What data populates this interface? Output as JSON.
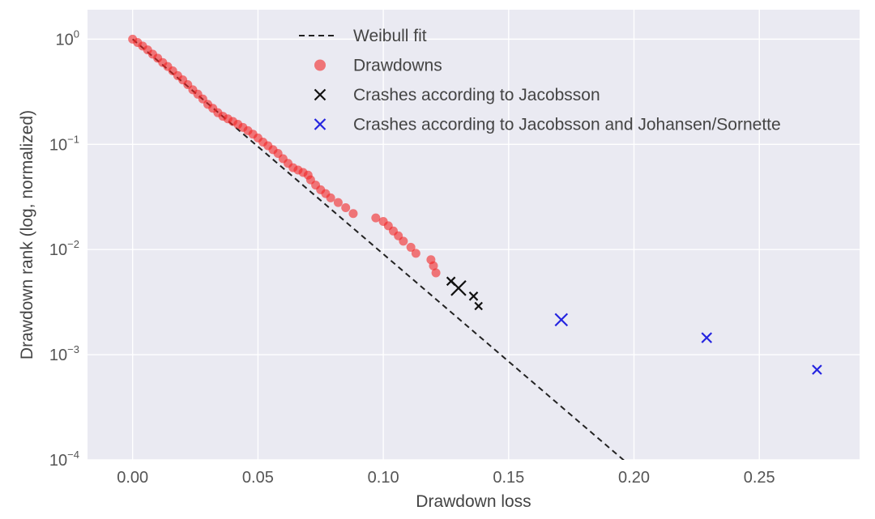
{
  "chart_data": {
    "type": "scatter",
    "title": "",
    "xlabel": "Drawdown loss",
    "ylabel": "Drawdown rank (log, normalized)",
    "xlim": [
      -0.018,
      0.29
    ],
    "ylim_log10": [
      -4,
      0.28
    ],
    "yscale": "log",
    "grid": true,
    "legend_position": "top-center",
    "x_ticks": [
      {
        "value": 0.0,
        "label": "0.00"
      },
      {
        "value": 0.05,
        "label": "0.05"
      },
      {
        "value": 0.1,
        "label": "0.10"
      },
      {
        "value": 0.15,
        "label": "0.15"
      },
      {
        "value": 0.2,
        "label": "0.20"
      },
      {
        "value": 0.25,
        "label": "0.25"
      }
    ],
    "y_ticks": [
      {
        "exp": 0,
        "base": "10",
        "sup": "0"
      },
      {
        "exp": -1,
        "base": "10",
        "sup": "−1"
      },
      {
        "exp": -2,
        "base": "10",
        "sup": "−2"
      },
      {
        "exp": -3,
        "base": "10",
        "sup": "−3"
      },
      {
        "exp": -4,
        "base": "10",
        "sup": "−4"
      }
    ],
    "colors": {
      "background": "#eaeaf2",
      "grid": "#ffffff",
      "fit": "#222222",
      "drawdowns": "#f22525",
      "crash_jacobsson": "#111111",
      "crash_js": "#2424e0"
    },
    "legend": [
      {
        "label": "Weibull fit",
        "marker": "dashed-line"
      },
      {
        "label": "Drawdowns",
        "marker": "dot"
      },
      {
        "label": "Crashes according to Jacobsson",
        "marker": "x-black"
      },
      {
        "label": "Crashes according to Jacobsson and Johansen/Sornette",
        "marker": "x-blue"
      }
    ],
    "series": [
      {
        "name": "Weibull fit",
        "kind": "line",
        "points": [
          {
            "x": 0.0,
            "y": 1.0
          },
          {
            "x": 0.2,
            "y": 8.2e-05
          }
        ]
      },
      {
        "name": "Drawdowns",
        "kind": "scatter",
        "points": [
          {
            "x": 0.0,
            "y": 1.0
          },
          {
            "x": 0.002,
            "y": 0.93
          },
          {
            "x": 0.004,
            "y": 0.86
          },
          {
            "x": 0.006,
            "y": 0.79
          },
          {
            "x": 0.008,
            "y": 0.72
          },
          {
            "x": 0.01,
            "y": 0.66
          },
          {
            "x": 0.012,
            "y": 0.6
          },
          {
            "x": 0.014,
            "y": 0.55
          },
          {
            "x": 0.016,
            "y": 0.5
          },
          {
            "x": 0.018,
            "y": 0.45
          },
          {
            "x": 0.02,
            "y": 0.41
          },
          {
            "x": 0.022,
            "y": 0.37
          },
          {
            "x": 0.024,
            "y": 0.33
          },
          {
            "x": 0.026,
            "y": 0.3
          },
          {
            "x": 0.028,
            "y": 0.27
          },
          {
            "x": 0.03,
            "y": 0.24
          },
          {
            "x": 0.032,
            "y": 0.22
          },
          {
            "x": 0.034,
            "y": 0.2
          },
          {
            "x": 0.036,
            "y": 0.185
          },
          {
            "x": 0.038,
            "y": 0.175
          },
          {
            "x": 0.04,
            "y": 0.165
          },
          {
            "x": 0.042,
            "y": 0.155
          },
          {
            "x": 0.044,
            "y": 0.145
          },
          {
            "x": 0.046,
            "y": 0.135
          },
          {
            "x": 0.048,
            "y": 0.125
          },
          {
            "x": 0.05,
            "y": 0.115
          },
          {
            "x": 0.052,
            "y": 0.105
          },
          {
            "x": 0.054,
            "y": 0.097
          },
          {
            "x": 0.056,
            "y": 0.089
          },
          {
            "x": 0.058,
            "y": 0.082
          },
          {
            "x": 0.06,
            "y": 0.073
          },
          {
            "x": 0.062,
            "y": 0.066
          },
          {
            "x": 0.064,
            "y": 0.06
          },
          {
            "x": 0.066,
            "y": 0.057
          },
          {
            "x": 0.068,
            "y": 0.054
          },
          {
            "x": 0.07,
            "y": 0.051
          },
          {
            "x": 0.071,
            "y": 0.046
          },
          {
            "x": 0.073,
            "y": 0.041
          },
          {
            "x": 0.075,
            "y": 0.037
          },
          {
            "x": 0.077,
            "y": 0.034
          },
          {
            "x": 0.079,
            "y": 0.031
          },
          {
            "x": 0.082,
            "y": 0.028
          },
          {
            "x": 0.085,
            "y": 0.025
          },
          {
            "x": 0.088,
            "y": 0.022
          },
          {
            "x": 0.097,
            "y": 0.02
          },
          {
            "x": 0.1,
            "y": 0.0185
          },
          {
            "x": 0.102,
            "y": 0.0168
          },
          {
            "x": 0.104,
            "y": 0.015
          },
          {
            "x": 0.106,
            "y": 0.0135
          },
          {
            "x": 0.108,
            "y": 0.012
          },
          {
            "x": 0.111,
            "y": 0.0105
          },
          {
            "x": 0.113,
            "y": 0.0092
          },
          {
            "x": 0.119,
            "y": 0.008
          },
          {
            "x": 0.12,
            "y": 0.007
          },
          {
            "x": 0.121,
            "y": 0.006
          }
        ]
      },
      {
        "name": "Crashes according to Jacobsson",
        "kind": "scatter",
        "points": [
          {
            "x": 0.127,
            "y": 0.005,
            "size": 10
          },
          {
            "x": 0.13,
            "y": 0.0043,
            "size": 18
          },
          {
            "x": 0.136,
            "y": 0.0036,
            "size": 10
          },
          {
            "x": 0.138,
            "y": 0.0029,
            "size": 9
          }
        ]
      },
      {
        "name": "Crashes according to Jacobsson and Johansen/Sornette",
        "kind": "scatter",
        "points": [
          {
            "x": 0.171,
            "y": 0.00215,
            "size": 15
          },
          {
            "x": 0.229,
            "y": 0.00145,
            "size": 12
          },
          {
            "x": 0.273,
            "y": 0.00072,
            "size": 11
          }
        ]
      }
    ]
  }
}
